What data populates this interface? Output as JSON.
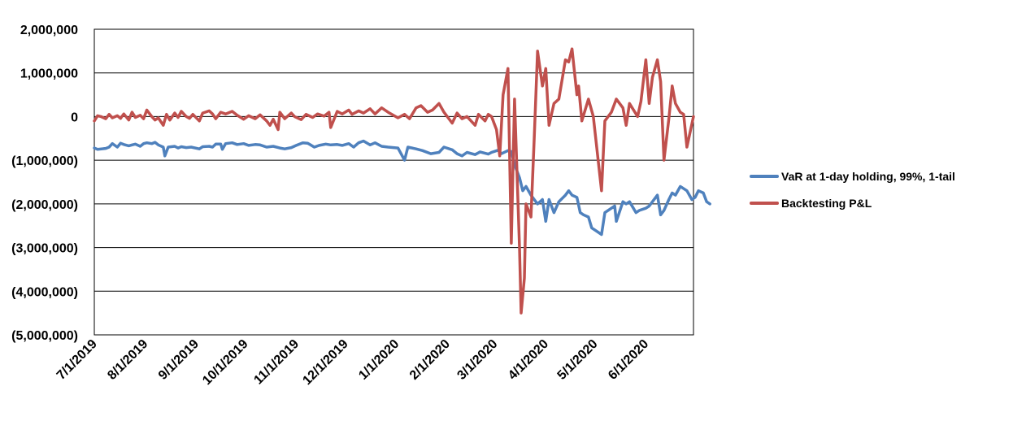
{
  "chart_data": {
    "type": "line",
    "title": "",
    "xlabel": "",
    "ylabel": "",
    "x_tick_labels": [
      "7/1/2019",
      "8/1/2019",
      "9/1/2019",
      "10/1/2019",
      "11/1/2019",
      "12/1/2019",
      "1/1/2020",
      "2/1/2020",
      "3/1/2020",
      "4/1/2020",
      "5/1/2020",
      "6/1/2020"
    ],
    "y_tick_labels": [
      "2,000,000",
      "1,000,000",
      "0",
      "(1,000,000)",
      "(2,000,000)",
      "(3,000,000)",
      "(4,000,000)",
      "(5,000,000)"
    ],
    "y_tick_values": [
      2000000,
      1000000,
      0,
      -1000000,
      -2000000,
      -3000000,
      -4000000,
      -5000000
    ],
    "ylim": [
      -5000000,
      2000000
    ],
    "xlim": [
      "2019-07-01",
      "2020-06-30"
    ],
    "grid": "horizontal",
    "legend": "right",
    "series": [
      {
        "name": "VaR at 1-day holding, 99%, 1-tail",
        "color": "#4F81BD",
        "points": [
          [
            "2019-07-01",
            -720000
          ],
          [
            "2019-07-03",
            -750000
          ],
          [
            "2019-07-08",
            -730000
          ],
          [
            "2019-07-10",
            -700000
          ],
          [
            "2019-07-12",
            -620000
          ],
          [
            "2019-07-15",
            -700000
          ],
          [
            "2019-07-17",
            -610000
          ],
          [
            "2019-07-19",
            -640000
          ],
          [
            "2019-07-22",
            -670000
          ],
          [
            "2019-07-24",
            -650000
          ],
          [
            "2019-07-26",
            -630000
          ],
          [
            "2019-07-29",
            -680000
          ],
          [
            "2019-07-31",
            -620000
          ],
          [
            "2019-08-02",
            -600000
          ],
          [
            "2019-08-05",
            -620000
          ],
          [
            "2019-08-07",
            -590000
          ],
          [
            "2019-08-09",
            -650000
          ],
          [
            "2019-08-12",
            -700000
          ],
          [
            "2019-08-13",
            -900000
          ],
          [
            "2019-08-15",
            -700000
          ],
          [
            "2019-08-19",
            -680000
          ],
          [
            "2019-08-21",
            -720000
          ],
          [
            "2019-08-23",
            -690000
          ],
          [
            "2019-08-26",
            -710000
          ],
          [
            "2019-08-29",
            -700000
          ],
          [
            "2019-09-03",
            -740000
          ],
          [
            "2019-09-05",
            -690000
          ],
          [
            "2019-09-09",
            -680000
          ],
          [
            "2019-09-11",
            -700000
          ],
          [
            "2019-09-13",
            -630000
          ],
          [
            "2019-09-16",
            -630000
          ],
          [
            "2019-09-17",
            -750000
          ],
          [
            "2019-09-19",
            -620000
          ],
          [
            "2019-09-23",
            -600000
          ],
          [
            "2019-09-26",
            -640000
          ],
          [
            "2019-09-30",
            -620000
          ],
          [
            "2019-10-03",
            -660000
          ],
          [
            "2019-10-07",
            -640000
          ],
          [
            "2019-10-10",
            -650000
          ],
          [
            "2019-10-14",
            -700000
          ],
          [
            "2019-10-18",
            -680000
          ],
          [
            "2019-10-22",
            -720000
          ],
          [
            "2019-10-25",
            -740000
          ],
          [
            "2019-10-29",
            -710000
          ],
          [
            "2019-11-01",
            -660000
          ],
          [
            "2019-11-05",
            -600000
          ],
          [
            "2019-11-08",
            -610000
          ],
          [
            "2019-11-12",
            -700000
          ],
          [
            "2019-11-15",
            -660000
          ],
          [
            "2019-11-19",
            -630000
          ],
          [
            "2019-11-22",
            -650000
          ],
          [
            "2019-11-26",
            -640000
          ],
          [
            "2019-11-29",
            -660000
          ],
          [
            "2019-12-03",
            -620000
          ],
          [
            "2019-12-06",
            -700000
          ],
          [
            "2019-12-09",
            -600000
          ],
          [
            "2019-12-12",
            -560000
          ],
          [
            "2019-12-16",
            -650000
          ],
          [
            "2019-12-19",
            -600000
          ],
          [
            "2019-12-23",
            -680000
          ],
          [
            "2019-12-27",
            -700000
          ],
          [
            "2020-01-02",
            -720000
          ],
          [
            "2020-01-06",
            -1000000
          ],
          [
            "2020-01-08",
            -700000
          ],
          [
            "2020-01-13",
            -740000
          ],
          [
            "2020-01-17",
            -780000
          ],
          [
            "2020-01-22",
            -850000
          ],
          [
            "2020-01-27",
            -820000
          ],
          [
            "2020-01-30",
            -700000
          ],
          [
            "2020-02-04",
            -760000
          ],
          [
            "2020-02-07",
            -850000
          ],
          [
            "2020-02-10",
            -900000
          ],
          [
            "2020-02-13",
            -820000
          ],
          [
            "2020-02-18",
            -870000
          ],
          [
            "2020-02-21",
            -810000
          ],
          [
            "2020-02-26",
            -860000
          ],
          [
            "2020-02-28",
            -820000
          ],
          [
            "2020-03-03",
            -770000
          ],
          [
            "2020-03-05",
            -850000
          ],
          [
            "2020-03-09",
            -780000
          ],
          [
            "2020-03-11",
            -800000
          ],
          [
            "2020-03-13",
            -1100000
          ],
          [
            "2020-03-16",
            -1400000
          ],
          [
            "2020-03-18",
            -1700000
          ],
          [
            "2020-03-20",
            -1600000
          ],
          [
            "2020-03-23",
            -1800000
          ],
          [
            "2020-03-25",
            -1900000
          ],
          [
            "2020-03-27",
            -2000000
          ],
          [
            "2020-03-30",
            -1900000
          ],
          [
            "2020-04-01",
            -2400000
          ],
          [
            "2020-04-03",
            -1900000
          ],
          [
            "2020-04-06",
            -2200000
          ],
          [
            "2020-04-09",
            -1950000
          ],
          [
            "2020-04-13",
            -1800000
          ],
          [
            "2020-04-15",
            -1700000
          ],
          [
            "2020-04-17",
            -1800000
          ],
          [
            "2020-04-20",
            -1850000
          ],
          [
            "2020-04-22",
            -2200000
          ],
          [
            "2020-04-24",
            -2250000
          ],
          [
            "2020-04-27",
            -2300000
          ],
          [
            "2020-04-29",
            -2550000
          ],
          [
            "2020-05-01",
            -2600000
          ],
          [
            "2020-05-05",
            -2700000
          ],
          [
            "2020-05-07",
            -2200000
          ],
          [
            "2020-05-11",
            -2100000
          ],
          [
            "2020-05-13",
            -2050000
          ],
          [
            "2020-05-14",
            -2400000
          ],
          [
            "2020-05-18",
            -1950000
          ],
          [
            "2020-05-20",
            -2000000
          ],
          [
            "2020-05-22",
            -1950000
          ],
          [
            "2020-05-26",
            -2200000
          ],
          [
            "2020-05-28",
            -2150000
          ],
          [
            "2020-06-01",
            -2100000
          ],
          [
            "2020-06-03",
            -2050000
          ],
          [
            "2020-06-05",
            -1950000
          ],
          [
            "2020-06-08",
            -1800000
          ],
          [
            "2020-06-10",
            -2250000
          ],
          [
            "2020-06-12",
            -2150000
          ],
          [
            "2020-06-15",
            -1900000
          ],
          [
            "2020-06-17",
            -1750000
          ],
          [
            "2020-06-19",
            -1800000
          ],
          [
            "2020-06-22",
            -1600000
          ],
          [
            "2020-06-24",
            -1650000
          ],
          [
            "2020-06-26",
            -1700000
          ],
          [
            "2020-06-29",
            -1900000
          ],
          [
            "2020-07-01",
            -1850000
          ],
          [
            "2020-07-03",
            -1700000
          ],
          [
            "2020-07-06",
            -1750000
          ],
          [
            "2020-07-08",
            -1950000
          ],
          [
            "2020-07-10",
            -2000000
          ]
        ]
      },
      {
        "name": "Backtesting P&L",
        "color": "#C0504D",
        "points": [
          [
            "2019-07-01",
            -100000
          ],
          [
            "2019-07-03",
            20000
          ],
          [
            "2019-07-05",
            0
          ],
          [
            "2019-07-08",
            -50000
          ],
          [
            "2019-07-10",
            50000
          ],
          [
            "2019-07-12",
            -30000
          ],
          [
            "2019-07-15",
            20000
          ],
          [
            "2019-07-17",
            -40000
          ],
          [
            "2019-07-19",
            60000
          ],
          [
            "2019-07-22",
            -80000
          ],
          [
            "2019-07-24",
            100000
          ],
          [
            "2019-07-26",
            -20000
          ],
          [
            "2019-07-29",
            30000
          ],
          [
            "2019-07-31",
            -50000
          ],
          [
            "2019-08-02",
            150000
          ],
          [
            "2019-08-05",
            0
          ],
          [
            "2019-08-07",
            -80000
          ],
          [
            "2019-08-09",
            -30000
          ],
          [
            "2019-08-12",
            -200000
          ],
          [
            "2019-08-14",
            50000
          ],
          [
            "2019-08-16",
            -80000
          ],
          [
            "2019-08-19",
            80000
          ],
          [
            "2019-08-21",
            -20000
          ],
          [
            "2019-08-23",
            120000
          ],
          [
            "2019-08-26",
            0
          ],
          [
            "2019-08-28",
            -40000
          ],
          [
            "2019-08-30",
            50000
          ],
          [
            "2019-09-03",
            -100000
          ],
          [
            "2019-09-05",
            80000
          ],
          [
            "2019-09-09",
            130000
          ],
          [
            "2019-09-11",
            60000
          ],
          [
            "2019-09-13",
            -50000
          ],
          [
            "2019-09-16",
            100000
          ],
          [
            "2019-09-19",
            60000
          ],
          [
            "2019-09-23",
            120000
          ],
          [
            "2019-09-26",
            30000
          ],
          [
            "2019-09-30",
            -60000
          ],
          [
            "2019-10-03",
            20000
          ],
          [
            "2019-10-07",
            -50000
          ],
          [
            "2019-10-10",
            40000
          ],
          [
            "2019-10-14",
            -100000
          ],
          [
            "2019-10-16",
            -200000
          ],
          [
            "2019-10-18",
            -60000
          ],
          [
            "2019-10-21",
            -300000
          ],
          [
            "2019-10-22",
            100000
          ],
          [
            "2019-10-25",
            -50000
          ],
          [
            "2019-10-29",
            80000
          ],
          [
            "2019-10-31",
            0
          ],
          [
            "2019-11-04",
            -70000
          ],
          [
            "2019-11-07",
            50000
          ],
          [
            "2019-11-11",
            -20000
          ],
          [
            "2019-11-14",
            60000
          ],
          [
            "2019-11-18",
            10000
          ],
          [
            "2019-11-21",
            100000
          ],
          [
            "2019-11-22",
            -250000
          ],
          [
            "2019-11-26",
            120000
          ],
          [
            "2019-11-29",
            60000
          ],
          [
            "2019-12-03",
            150000
          ],
          [
            "2019-12-05",
            50000
          ],
          [
            "2019-12-09",
            130000
          ],
          [
            "2019-12-12",
            80000
          ],
          [
            "2019-12-16",
            180000
          ],
          [
            "2019-12-19",
            60000
          ],
          [
            "2019-12-23",
            200000
          ],
          [
            "2019-12-27",
            100000
          ],
          [
            "2020-01-02",
            -30000
          ],
          [
            "2020-01-06",
            50000
          ],
          [
            "2020-01-09",
            -50000
          ],
          [
            "2020-01-13",
            200000
          ],
          [
            "2020-01-16",
            250000
          ],
          [
            "2020-01-20",
            100000
          ],
          [
            "2020-01-23",
            150000
          ],
          [
            "2020-01-27",
            300000
          ],
          [
            "2020-01-30",
            100000
          ],
          [
            "2020-02-04",
            -150000
          ],
          [
            "2020-02-07",
            80000
          ],
          [
            "2020-02-10",
            -50000
          ],
          [
            "2020-02-13",
            0
          ],
          [
            "2020-02-18",
            -200000
          ],
          [
            "2020-02-20",
            50000
          ],
          [
            "2020-02-24",
            -100000
          ],
          [
            "2020-02-26",
            50000
          ],
          [
            "2020-02-28",
            0
          ],
          [
            "2020-03-02",
            -300000
          ],
          [
            "2020-03-04",
            -900000
          ],
          [
            "2020-03-06",
            500000
          ],
          [
            "2020-03-09",
            1100000
          ],
          [
            "2020-03-11",
            -2900000
          ],
          [
            "2020-03-13",
            400000
          ],
          [
            "2020-03-16",
            -3000000
          ],
          [
            "2020-03-17",
            -4500000
          ],
          [
            "2020-03-19",
            -3700000
          ],
          [
            "2020-03-20",
            -2000000
          ],
          [
            "2020-03-23",
            -2300000
          ],
          [
            "2020-03-25",
            -500000
          ],
          [
            "2020-03-27",
            1500000
          ],
          [
            "2020-03-30",
            700000
          ],
          [
            "2020-04-01",
            1100000
          ],
          [
            "2020-04-03",
            -200000
          ],
          [
            "2020-04-06",
            300000
          ],
          [
            "2020-04-09",
            400000
          ],
          [
            "2020-04-13",
            1300000
          ],
          [
            "2020-04-15",
            1250000
          ],
          [
            "2020-04-17",
            1550000
          ],
          [
            "2020-04-20",
            500000
          ],
          [
            "2020-04-21",
            700000
          ],
          [
            "2020-04-23",
            -100000
          ],
          [
            "2020-04-27",
            400000
          ],
          [
            "2020-04-30",
            0
          ],
          [
            "2020-05-05",
            -1700000
          ],
          [
            "2020-05-07",
            -100000
          ],
          [
            "2020-05-11",
            100000
          ],
          [
            "2020-05-14",
            400000
          ],
          [
            "2020-05-18",
            200000
          ],
          [
            "2020-05-20",
            -200000
          ],
          [
            "2020-05-22",
            300000
          ],
          [
            "2020-05-27",
            0
          ],
          [
            "2020-05-29",
            350000
          ],
          [
            "2020-06-01",
            1300000
          ],
          [
            "2020-06-03",
            300000
          ],
          [
            "2020-06-05",
            900000
          ],
          [
            "2020-06-08",
            1300000
          ],
          [
            "2020-06-10",
            800000
          ],
          [
            "2020-06-12",
            -1000000
          ],
          [
            "2020-06-15",
            -50000
          ],
          [
            "2020-06-17",
            700000
          ],
          [
            "2020-06-19",
            300000
          ],
          [
            "2020-06-22",
            100000
          ],
          [
            "2020-06-24",
            50000
          ],
          [
            "2020-06-26",
            -700000
          ],
          [
            "2020-06-30",
            0
          ]
        ]
      }
    ]
  }
}
